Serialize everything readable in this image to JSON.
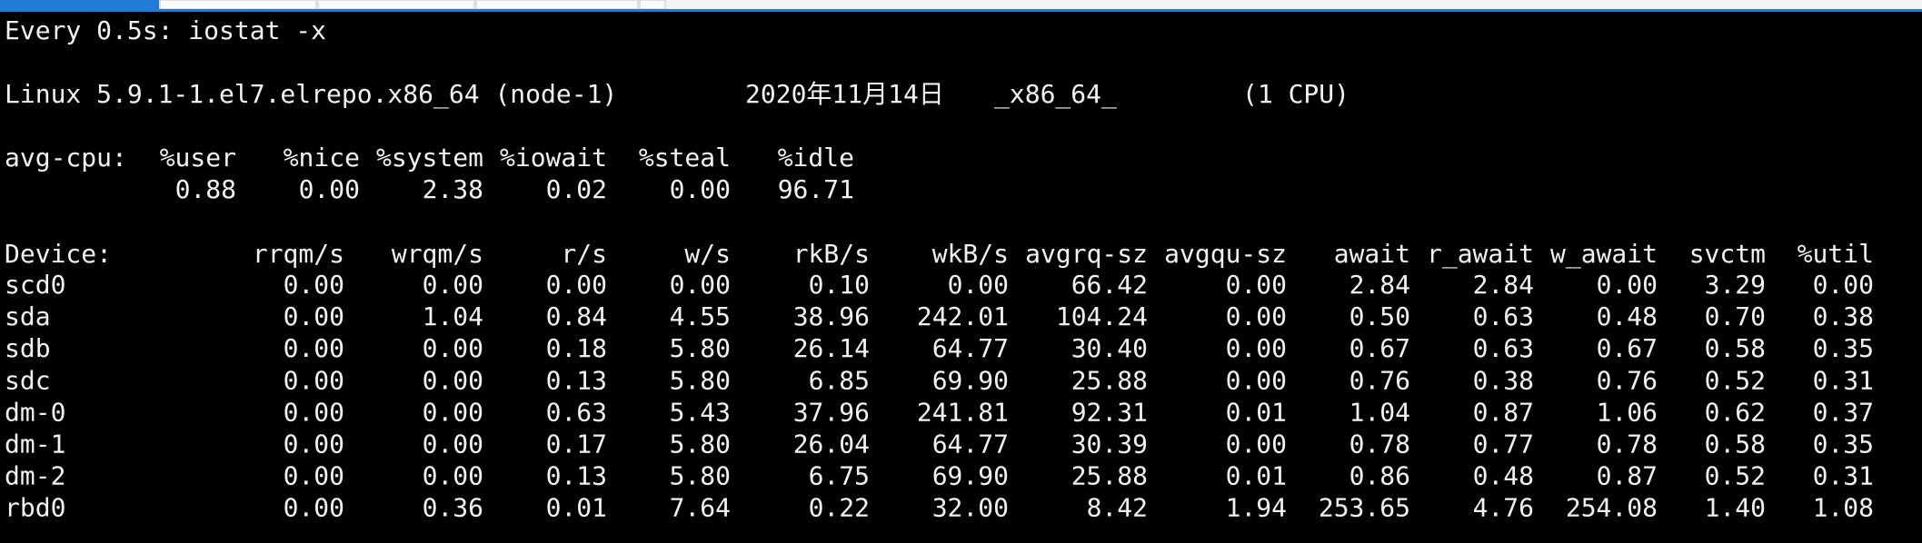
{
  "watch": "Every 0.5s: iostat -x",
  "system": {
    "kernel": "Linux 5.9.1-1.el7.elrepo.x86_64 (node-1)",
    "date": "2020年11月14日",
    "arch": "_x86_64_",
    "cpus": "(1 CPU)"
  },
  "cpu": {
    "label": "avg-cpu:",
    "columns": [
      "%user",
      "%nice",
      "%system",
      "%iowait",
      "%steal",
      "%idle"
    ],
    "values": [
      "0.88",
      "0.00",
      "2.38",
      "0.02",
      "0.00",
      "96.71"
    ]
  },
  "devices": {
    "label": "Device:",
    "columns": [
      "rrqm/s",
      "wrqm/s",
      "r/s",
      "w/s",
      "rkB/s",
      "wkB/s",
      "avgrq-sz",
      "avgqu-sz",
      "await",
      "r_await",
      "w_await",
      "svctm",
      "%util"
    ],
    "rows": [
      [
        "scd0",
        "0.00",
        "0.00",
        "0.00",
        "0.00",
        "0.10",
        "0.00",
        "66.42",
        "0.00",
        "2.84",
        "2.84",
        "0.00",
        "3.29",
        "0.00"
      ],
      [
        "sda",
        "0.00",
        "1.04",
        "0.84",
        "4.55",
        "38.96",
        "242.01",
        "104.24",
        "0.00",
        "0.50",
        "0.63",
        "0.48",
        "0.70",
        "0.38"
      ],
      [
        "sdb",
        "0.00",
        "0.00",
        "0.18",
        "5.80",
        "26.14",
        "64.77",
        "30.40",
        "0.00",
        "0.67",
        "0.63",
        "0.67",
        "0.58",
        "0.35"
      ],
      [
        "sdc",
        "0.00",
        "0.00",
        "0.13",
        "5.80",
        "6.85",
        "69.90",
        "25.88",
        "0.00",
        "0.76",
        "0.38",
        "0.76",
        "0.52",
        "0.31"
      ],
      [
        "dm-0",
        "0.00",
        "0.00",
        "0.63",
        "5.43",
        "37.96",
        "241.81",
        "92.31",
        "0.01",
        "1.04",
        "0.87",
        "1.06",
        "0.62",
        "0.37"
      ],
      [
        "dm-1",
        "0.00",
        "0.00",
        "0.17",
        "5.80",
        "26.04",
        "64.77",
        "30.39",
        "0.00",
        "0.78",
        "0.77",
        "0.78",
        "0.58",
        "0.35"
      ],
      [
        "dm-2",
        "0.00",
        "0.00",
        "0.13",
        "5.80",
        "6.75",
        "69.90",
        "25.88",
        "0.01",
        "0.86",
        "0.48",
        "0.87",
        "0.52",
        "0.31"
      ],
      [
        "rbd0",
        "0.00",
        "0.36",
        "0.01",
        "7.64",
        "0.22",
        "32.00",
        "8.42",
        "1.94",
        "253.65",
        "4.76",
        "254.08",
        "1.40",
        "1.08"
      ]
    ]
  }
}
